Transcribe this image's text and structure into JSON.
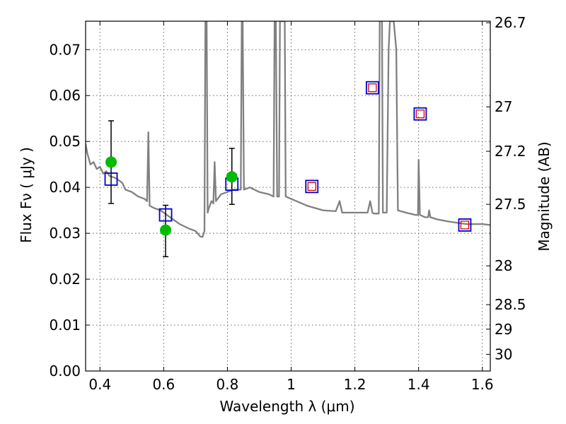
{
  "chart_data": {
    "type": "scatter",
    "xlabel": "Wavelength  λ (μm)",
    "ylabel": "Flux  Fν  ( μJy )",
    "y2label": "Magnitude (AB)",
    "xlim": [
      0.355,
      1.625
    ],
    "ylim": [
      0.0,
      0.0762
    ],
    "x_ticks": [
      {
        "value": 0.4,
        "label": "0.4"
      },
      {
        "value": 0.6,
        "label": "0.6"
      },
      {
        "value": 0.8,
        "label": "0.8"
      },
      {
        "value": 1.0,
        "label": "1"
      },
      {
        "value": 1.2,
        "label": "1.2"
      },
      {
        "value": 1.4,
        "label": "1.4"
      },
      {
        "value": 1.6,
        "label": "1.6"
      }
    ],
    "y_ticks": [
      {
        "value": 0.0,
        "label": "0.00"
      },
      {
        "value": 0.01,
        "label": "0.01"
      },
      {
        "value": 0.02,
        "label": "0.02"
      },
      {
        "value": 0.03,
        "label": "0.03"
      },
      {
        "value": 0.04,
        "label": "0.04"
      },
      {
        "value": 0.05,
        "label": "0.05"
      },
      {
        "value": 0.06,
        "label": "0.06"
      },
      {
        "value": 0.07,
        "label": "0.07"
      }
    ],
    "y2_ticks": [
      {
        "label": "26.7"
      },
      {
        "label": "27"
      },
      {
        "label": "27.2"
      },
      {
        "label": "27.5"
      },
      {
        "label": "28"
      },
      {
        "label": "28.5"
      },
      {
        "label": "29"
      },
      {
        "label": "30"
      }
    ],
    "grid": true,
    "series": [
      {
        "kind": "line",
        "color": "#808080",
        "points": [
          [
            0.355,
            0.0495
          ],
          [
            0.36,
            0.0475
          ],
          [
            0.37,
            0.045
          ],
          [
            0.38,
            0.0455
          ],
          [
            0.39,
            0.044
          ],
          [
            0.4,
            0.0445
          ],
          [
            0.41,
            0.043
          ],
          [
            0.42,
            0.0435
          ],
          [
            0.43,
            0.0425
          ],
          [
            0.45,
            0.042
          ],
          [
            0.47,
            0.041
          ],
          [
            0.48,
            0.0395
          ],
          [
            0.5,
            0.039
          ],
          [
            0.52,
            0.038
          ],
          [
            0.54,
            0.0375
          ],
          [
            0.548,
            0.037
          ],
          [
            0.552,
            0.052
          ],
          [
            0.556,
            0.036
          ],
          [
            0.57,
            0.0355
          ],
          [
            0.59,
            0.035
          ],
          [
            0.62,
            0.0335
          ],
          [
            0.65,
            0.032
          ],
          [
            0.68,
            0.031
          ],
          [
            0.7,
            0.0305
          ],
          [
            0.715,
            0.0293
          ],
          [
            0.722,
            0.0292
          ],
          [
            0.728,
            0.0305
          ],
          [
            0.731,
            0.0762
          ],
          [
            0.735,
            0.0762
          ],
          [
            0.738,
            0.0345
          ],
          [
            0.742,
            0.0355
          ],
          [
            0.75,
            0.037
          ],
          [
            0.756,
            0.0365
          ],
          [
            0.76,
            0.0455
          ],
          [
            0.764,
            0.037
          ],
          [
            0.78,
            0.0385
          ],
          [
            0.8,
            0.039
          ],
          [
            0.82,
            0.0395
          ],
          [
            0.842,
            0.0395
          ],
          [
            0.845,
            0.0762
          ],
          [
            0.848,
            0.0762
          ],
          [
            0.852,
            0.0395
          ],
          [
            0.87,
            0.04
          ],
          [
            0.9,
            0.039
          ],
          [
            0.93,
            0.0385
          ],
          [
            0.945,
            0.038
          ],
          [
            0.948,
            0.0762
          ],
          [
            0.952,
            0.0762
          ],
          [
            0.956,
            0.038
          ],
          [
            0.962,
            0.038
          ],
          [
            0.965,
            0.0762
          ],
          [
            0.972,
            0.0762
          ],
          [
            0.975,
            0.0762
          ],
          [
            0.98,
            0.0762
          ],
          [
            0.983,
            0.038
          ],
          [
            1.0,
            0.0375
          ],
          [
            1.05,
            0.036
          ],
          [
            1.1,
            0.035
          ],
          [
            1.14,
            0.0348
          ],
          [
            1.152,
            0.037
          ],
          [
            1.16,
            0.0345
          ],
          [
            1.2,
            0.0345
          ],
          [
            1.24,
            0.0345
          ],
          [
            1.248,
            0.037
          ],
          [
            1.255,
            0.0345
          ],
          [
            1.26,
            0.0343
          ],
          [
            1.275,
            0.0343
          ],
          [
            1.278,
            0.0762
          ],
          [
            1.285,
            0.0762
          ],
          [
            1.288,
            0.0345
          ],
          [
            1.3,
            0.0345
          ],
          [
            1.302,
            0.0465
          ],
          [
            1.306,
            0.07
          ],
          [
            1.31,
            0.0762
          ],
          [
            1.322,
            0.0762
          ],
          [
            1.33,
            0.07
          ],
          [
            1.335,
            0.035
          ],
          [
            1.36,
            0.0345
          ],
          [
            1.39,
            0.034
          ],
          [
            1.398,
            0.034
          ],
          [
            1.4,
            0.046
          ],
          [
            1.404,
            0.034
          ],
          [
            1.42,
            0.0335
          ],
          [
            1.43,
            0.0335
          ],
          [
            1.433,
            0.035
          ],
          [
            1.437,
            0.0335
          ],
          [
            1.46,
            0.033
          ],
          [
            1.5,
            0.0325
          ],
          [
            1.55,
            0.032
          ],
          [
            1.6,
            0.032
          ],
          [
            1.625,
            0.0318
          ]
        ]
      },
      {
        "kind": "errorbar",
        "color": "#000000",
        "points": [
          {
            "x": 0.435,
            "low": 0.0365,
            "high": 0.0545
          },
          {
            "x": 0.606,
            "low": 0.0249,
            "high": 0.0361
          },
          {
            "x": 0.814,
            "low": 0.0363,
            "high": 0.0485
          }
        ]
      },
      {
        "kind": "square",
        "color": "#0000cc",
        "points": [
          [
            0.435,
            0.0418
          ],
          [
            0.606,
            0.034
          ],
          [
            0.814,
            0.0407
          ],
          [
            1.065,
            0.0402
          ],
          [
            1.255,
            0.0617
          ],
          [
            1.405,
            0.056
          ],
          [
            1.545,
            0.0318
          ]
        ]
      },
      {
        "kind": "small-square",
        "color": "#dd0000",
        "points": [
          [
            1.065,
            0.0402
          ],
          [
            1.255,
            0.0617
          ],
          [
            1.405,
            0.056
          ],
          [
            1.545,
            0.0318
          ]
        ]
      },
      {
        "kind": "circle",
        "color": "#00bb00",
        "points": [
          [
            0.435,
            0.0455
          ],
          [
            0.606,
            0.0307
          ],
          [
            0.814,
            0.0423
          ]
        ]
      }
    ]
  }
}
